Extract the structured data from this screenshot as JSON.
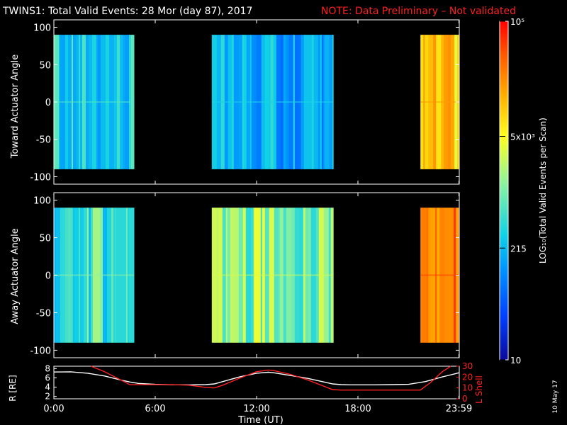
{
  "header": {
    "title": "TWINS1: Total Valid Events: 28 Mor (day  87), 2017",
    "note": "NOTE: Data Preliminary – Not validated"
  },
  "colors": {
    "background": "#000000",
    "axis": "#ffffff",
    "note": "#ff2020",
    "white_line": "#ffffff",
    "red_line": "#ff2020",
    "colormap": [
      "#0a0a9a",
      "#0040ff",
      "#0096ff",
      "#12d2e6",
      "#8cf2a0",
      "#ffff20",
      "#ffb000",
      "#ff5a00",
      "#ff0000"
    ]
  },
  "footer": {
    "stamp": "10 May 17"
  },
  "chart_data": [
    {
      "type": "heatmap",
      "id": "toward",
      "ylabel": "Toward Actuator Angle",
      "ylim": [
        -110,
        110
      ],
      "yticks": [
        100,
        50,
        0,
        -50,
        -100
      ],
      "xlim": [
        0,
        24
      ],
      "data_range_y": [
        -90,
        90
      ],
      "segments": [
        {
          "x": [
            0.0,
            4.75
          ],
          "level": 0.36
        },
        {
          "x": [
            9.35,
            16.55
          ],
          "level": 0.3
        },
        {
          "x": [
            21.7,
            23.99
          ],
          "level": 0.7
        }
      ]
    },
    {
      "type": "heatmap",
      "id": "away",
      "ylabel": "Away Actuator Angle",
      "ylim": [
        -110,
        110
      ],
      "yticks": [
        100,
        50,
        0,
        -50,
        -100
      ],
      "xlim": [
        0,
        24
      ],
      "data_range_y": [
        -90,
        90
      ],
      "segments": [
        {
          "x": [
            0.0,
            4.75
          ],
          "level": 0.42
        },
        {
          "x": [
            9.35,
            16.55
          ],
          "level": 0.5
        },
        {
          "x": [
            21.7,
            23.99
          ],
          "level": 0.84
        }
      ]
    },
    {
      "type": "line",
      "id": "orbit",
      "xlabel": "Time (UT)",
      "xticks": [
        "0:00",
        "6:00",
        "12:00",
        "18:00",
        "23:59"
      ],
      "xtick_hours": [
        0,
        6,
        12,
        18,
        23.98
      ],
      "ylabel_left": "R [RE]",
      "ylabel_right": "L Shell",
      "yticks_left": [
        8,
        6,
        4,
        2
      ],
      "ylim_left": [
        1.5,
        8.5
      ],
      "yticks_right": [
        30,
        20,
        10,
        0
      ],
      "ylim_right": [
        0,
        30
      ],
      "series": [
        {
          "name": "R",
          "axis": "left",
          "x": [
            0,
            1,
            2,
            3,
            4,
            4.5,
            5,
            6,
            7,
            8,
            9,
            9.5,
            10,
            11,
            12,
            12.7,
            13,
            14,
            15,
            16,
            16.5,
            17,
            17.5,
            18,
            19,
            20,
            21,
            22,
            23,
            24
          ],
          "y": [
            7.25,
            7.3,
            7.0,
            6.4,
            5.5,
            5.1,
            4.8,
            4.6,
            4.5,
            4.5,
            4.55,
            4.7,
            5.2,
            6.2,
            7.0,
            7.2,
            7.1,
            6.5,
            5.9,
            5.1,
            4.7,
            4.55,
            4.5,
            4.5,
            4.5,
            4.55,
            4.6,
            5.2,
            6.2,
            7.1
          ]
        },
        {
          "name": "L Shell",
          "axis": "right",
          "x": [
            2.2,
            3,
            4,
            4.5,
            5,
            6,
            7,
            8,
            9,
            9.5,
            10,
            11,
            12,
            12.7,
            13,
            14,
            15,
            16,
            16.5,
            17,
            18,
            19,
            20,
            21,
            21.7,
            22.3,
            23,
            23.5
          ],
          "y": [
            30,
            25,
            17,
            13,
            13,
            13,
            13,
            12.5,
            10.5,
            10,
            12.5,
            19,
            25,
            26.5,
            26,
            22.5,
            17.5,
            11.5,
            8.5,
            8,
            8,
            8,
            8,
            8,
            8,
            15,
            25,
            30
          ]
        }
      ]
    },
    {
      "type": "colorbar",
      "id": "colorbar",
      "label": "LOG₁₀(Total Valid Events per Scan)",
      "ticks": [
        {
          "label": "10⁵",
          "frac": 1.0
        },
        {
          "label": "5x10³",
          "frac": 0.66
        },
        {
          "label": "215",
          "frac": 0.33
        },
        {
          "label": "10",
          "frac": 0.0
        }
      ]
    }
  ]
}
